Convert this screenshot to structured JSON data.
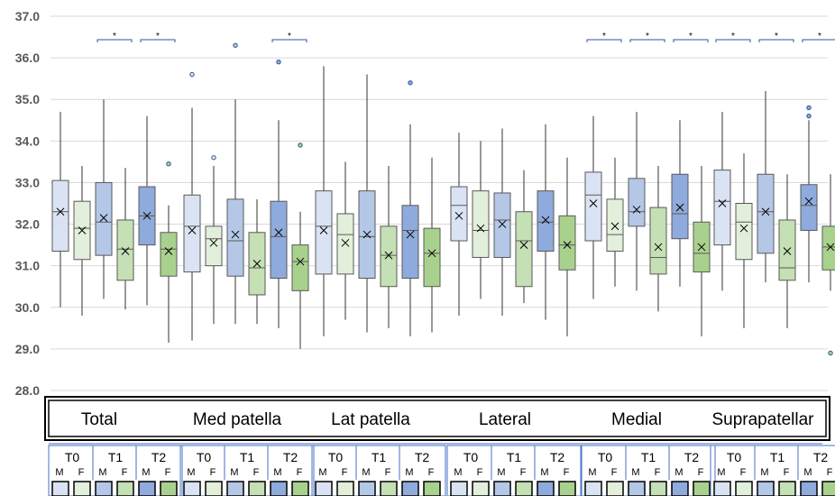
{
  "chart_data": {
    "type": "box",
    "ylim": [
      28.0,
      37.0
    ],
    "y_ticks": [
      "28.0",
      "29.0",
      "30.0",
      "31.0",
      "32.0",
      "33.0",
      "34.0",
      "35.0",
      "36.0",
      "37.0"
    ],
    "grid": true,
    "groups": [
      "Total",
      "Med patella",
      "Lat patella",
      "Lateral",
      "Medial",
      "Suprapatellar"
    ],
    "timepoints": [
      "T0",
      "T1",
      "T2"
    ],
    "sexes": [
      "M",
      "F"
    ],
    "significance_marker": "*",
    "significant_pairs": {
      "Total": [
        "T1",
        "T2"
      ],
      "Med patella": [
        "T2"
      ],
      "Lat patella": [],
      "Lateral": [],
      "Medial": [
        "T0",
        "T1",
        "T2"
      ],
      "Suprapatellar": [
        "T0",
        "T1",
        "T2"
      ]
    },
    "colors": {
      "T0-M": "#dae3f3",
      "T0-F": "#e2efda",
      "T1-M": "#b4c7e7",
      "T1-F": "#c5e0b4",
      "T2-M": "#8faadc",
      "T2-F": "#a9d18e",
      "box_border": "#595959",
      "grid": "#d9d9d9",
      "outlier_edge": "#2f5597"
    },
    "boxes": [
      {
        "group": "Total",
        "timepoint": "T0",
        "sex": "M",
        "min": 30.0,
        "q1": 31.35,
        "median": 32.3,
        "q3": 33.05,
        "max": 34.7,
        "mean": 32.3,
        "outliers": []
      },
      {
        "group": "Total",
        "timepoint": "T0",
        "sex": "F",
        "min": 29.8,
        "q1": 31.15,
        "median": 31.9,
        "q3": 32.55,
        "max": 33.4,
        "mean": 31.85,
        "outliers": []
      },
      {
        "group": "Total",
        "timepoint": "T1",
        "sex": "M",
        "min": 30.2,
        "q1": 31.25,
        "median": 32.05,
        "q3": 33.0,
        "max": 35.0,
        "mean": 32.15,
        "outliers": []
      },
      {
        "group": "Total",
        "timepoint": "T1",
        "sex": "F",
        "min": 29.95,
        "q1": 30.65,
        "median": 31.4,
        "q3": 32.1,
        "max": 33.35,
        "mean": 31.35,
        "outliers": []
      },
      {
        "group": "Total",
        "timepoint": "T2",
        "sex": "M",
        "min": 30.05,
        "q1": 31.5,
        "median": 32.2,
        "q3": 32.9,
        "max": 34.6,
        "mean": 32.2,
        "outliers": []
      },
      {
        "group": "Total",
        "timepoint": "T2",
        "sex": "F",
        "min": 29.15,
        "q1": 30.75,
        "median": 31.4,
        "q3": 31.8,
        "max": 32.45,
        "mean": 31.35,
        "outliers": [
          33.45
        ]
      },
      {
        "group": "Med patella",
        "timepoint": "T0",
        "sex": "M",
        "min": 29.2,
        "q1": 30.85,
        "median": 31.95,
        "q3": 32.7,
        "max": 34.8,
        "mean": 31.85,
        "outliers": [
          35.6
        ]
      },
      {
        "group": "Med patella",
        "timepoint": "T0",
        "sex": "F",
        "min": 29.6,
        "q1": 31.0,
        "median": 31.65,
        "q3": 31.95,
        "max": 33.4,
        "mean": 31.55,
        "outliers": [
          33.6
        ]
      },
      {
        "group": "Med patella",
        "timepoint": "T1",
        "sex": "M",
        "min": 29.6,
        "q1": 30.75,
        "median": 31.6,
        "q3": 32.6,
        "max": 35.0,
        "mean": 31.75,
        "outliers": [
          36.3
        ]
      },
      {
        "group": "Med patella",
        "timepoint": "T1",
        "sex": "F",
        "min": 29.6,
        "q1": 30.3,
        "median": 30.95,
        "q3": 31.8,
        "max": 32.6,
        "mean": 31.05,
        "outliers": []
      },
      {
        "group": "Med patella",
        "timepoint": "T2",
        "sex": "M",
        "min": 29.5,
        "q1": 30.7,
        "median": 31.7,
        "q3": 32.55,
        "max": 34.5,
        "mean": 31.8,
        "outliers": [
          35.9
        ]
      },
      {
        "group": "Med patella",
        "timepoint": "T2",
        "sex": "F",
        "min": 29.0,
        "q1": 30.4,
        "median": 31.1,
        "q3": 31.5,
        "max": 32.3,
        "mean": 31.1,
        "outliers": [
          33.9
        ]
      },
      {
        "group": "Lat patella",
        "timepoint": "T0",
        "sex": "M",
        "min": 29.3,
        "q1": 30.8,
        "median": 31.95,
        "q3": 32.8,
        "max": 35.8,
        "mean": 31.85,
        "outliers": []
      },
      {
        "group": "Lat patella",
        "timepoint": "T0",
        "sex": "F",
        "min": 29.7,
        "q1": 30.8,
        "median": 31.75,
        "q3": 32.25,
        "max": 33.5,
        "mean": 31.55,
        "outliers": []
      },
      {
        "group": "Lat patella",
        "timepoint": "T1",
        "sex": "M",
        "min": 29.4,
        "q1": 30.7,
        "median": 31.7,
        "q3": 32.8,
        "max": 35.6,
        "mean": 31.75,
        "outliers": []
      },
      {
        "group": "Lat patella",
        "timepoint": "T1",
        "sex": "F",
        "min": 29.5,
        "q1": 30.5,
        "median": 31.25,
        "q3": 31.95,
        "max": 33.4,
        "mean": 31.25,
        "outliers": []
      },
      {
        "group": "Lat patella",
        "timepoint": "T2",
        "sex": "M",
        "min": 29.3,
        "q1": 30.7,
        "median": 31.85,
        "q3": 32.45,
        "max": 34.4,
        "mean": 31.75,
        "outliers": [
          35.4
        ]
      },
      {
        "group": "Lat patella",
        "timepoint": "T2",
        "sex": "F",
        "min": 29.4,
        "q1": 30.5,
        "median": 31.3,
        "q3": 31.9,
        "max": 33.6,
        "mean": 31.3,
        "outliers": []
      },
      {
        "group": "Lateral",
        "timepoint": "T0",
        "sex": "M",
        "min": 29.8,
        "q1": 31.6,
        "median": 32.45,
        "q3": 32.9,
        "max": 34.2,
        "mean": 32.2,
        "outliers": []
      },
      {
        "group": "Lateral",
        "timepoint": "T0",
        "sex": "F",
        "min": 30.2,
        "q1": 31.2,
        "median": 31.85,
        "q3": 32.8,
        "max": 34.0,
        "mean": 31.9,
        "outliers": []
      },
      {
        "group": "Lateral",
        "timepoint": "T1",
        "sex": "M",
        "min": 29.8,
        "q1": 31.2,
        "median": 32.1,
        "q3": 32.75,
        "max": 34.3,
        "mean": 32.0,
        "outliers": []
      },
      {
        "group": "Lateral",
        "timepoint": "T1",
        "sex": "F",
        "min": 30.1,
        "q1": 30.5,
        "median": 31.6,
        "q3": 32.3,
        "max": 33.3,
        "mean": 31.5,
        "outliers": []
      },
      {
        "group": "Lateral",
        "timepoint": "T2",
        "sex": "M",
        "min": 29.7,
        "q1": 31.35,
        "median": 32.05,
        "q3": 32.8,
        "max": 34.4,
        "mean": 32.1,
        "outliers": []
      },
      {
        "group": "Lateral",
        "timepoint": "T2",
        "sex": "F",
        "min": 29.3,
        "q1": 30.9,
        "median": 31.5,
        "q3": 32.2,
        "max": 33.6,
        "mean": 31.5,
        "outliers": []
      },
      {
        "group": "Medial",
        "timepoint": "T0",
        "sex": "M",
        "min": 30.2,
        "q1": 31.6,
        "median": 32.7,
        "q3": 33.25,
        "max": 34.6,
        "mean": 32.5,
        "outliers": []
      },
      {
        "group": "Medial",
        "timepoint": "T0",
        "sex": "F",
        "min": 30.5,
        "q1": 31.35,
        "median": 31.75,
        "q3": 32.6,
        "max": 33.6,
        "mean": 31.95,
        "outliers": []
      },
      {
        "group": "Medial",
        "timepoint": "T1",
        "sex": "M",
        "min": 30.4,
        "q1": 31.95,
        "median": 32.3,
        "q3": 33.1,
        "max": 34.7,
        "mean": 32.35,
        "outliers": []
      },
      {
        "group": "Medial",
        "timepoint": "T1",
        "sex": "F",
        "min": 29.9,
        "q1": 30.8,
        "median": 31.2,
        "q3": 32.4,
        "max": 33.4,
        "mean": 31.45,
        "outliers": []
      },
      {
        "group": "Medial",
        "timepoint": "T2",
        "sex": "M",
        "min": 30.5,
        "q1": 31.65,
        "median": 32.25,
        "q3": 33.2,
        "max": 34.5,
        "mean": 32.4,
        "outliers": []
      },
      {
        "group": "Medial",
        "timepoint": "T2",
        "sex": "F",
        "min": 29.3,
        "q1": 30.85,
        "median": 31.3,
        "q3": 32.05,
        "max": 33.4,
        "mean": 31.45,
        "outliers": []
      },
      {
        "group": "Suprapatellar",
        "timepoint": "T0",
        "sex": "M",
        "min": 30.4,
        "q1": 31.5,
        "median": 32.55,
        "q3": 33.3,
        "max": 34.7,
        "mean": 32.5,
        "outliers": []
      },
      {
        "group": "Suprapatellar",
        "timepoint": "T0",
        "sex": "F",
        "min": 29.5,
        "q1": 31.15,
        "median": 32.05,
        "q3": 32.5,
        "max": 33.7,
        "mean": 31.9,
        "outliers": []
      },
      {
        "group": "Suprapatellar",
        "timepoint": "T1",
        "sex": "M",
        "min": 30.6,
        "q1": 31.3,
        "median": 32.3,
        "q3": 33.2,
        "max": 35.2,
        "mean": 32.3,
        "outliers": []
      },
      {
        "group": "Suprapatellar",
        "timepoint": "T1",
        "sex": "F",
        "min": 29.5,
        "q1": 30.65,
        "median": 30.95,
        "q3": 32.1,
        "max": 33.2,
        "mean": 31.35,
        "outliers": []
      },
      {
        "group": "Suprapatellar",
        "timepoint": "T2",
        "sex": "M",
        "min": 30.6,
        "q1": 31.85,
        "median": 32.45,
        "q3": 32.95,
        "max": 34.5,
        "mean": 32.55,
        "outliers": [
          34.6,
          34.8
        ]
      },
      {
        "group": "Suprapatellar",
        "timepoint": "T2",
        "sex": "F",
        "min": 30.4,
        "q1": 30.9,
        "median": 31.45,
        "q3": 31.95,
        "max": 33.2,
        "mean": 31.45,
        "outliers": [
          28.9
        ]
      }
    ]
  }
}
